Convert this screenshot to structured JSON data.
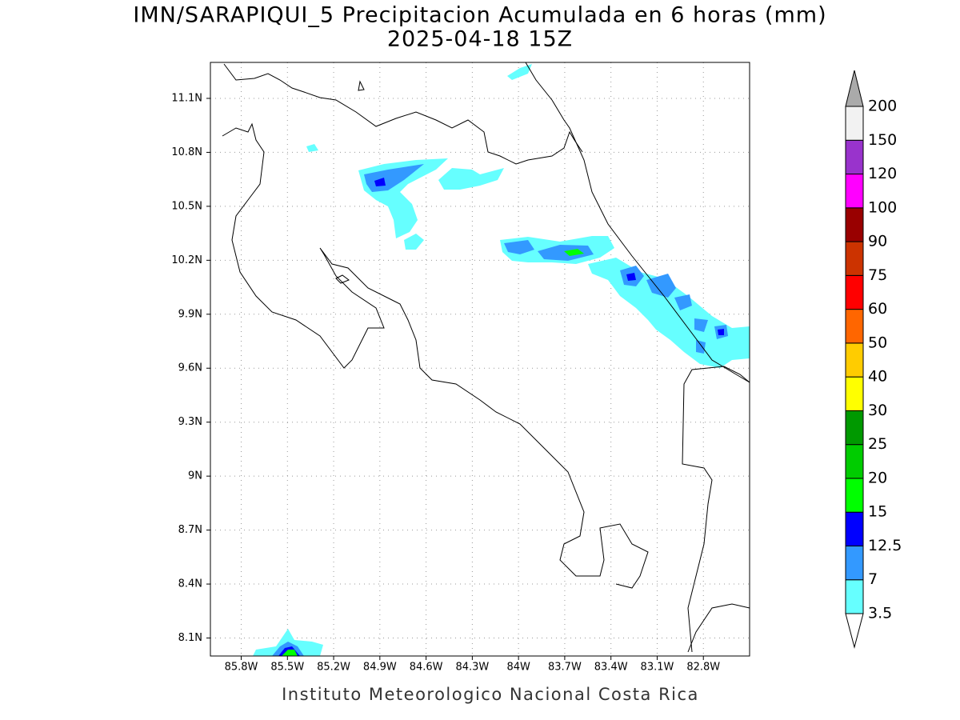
{
  "title": "IMN/SARAPIQUI_5 Precipitacion Acumulada en 6 horas (mm)",
  "subtitle": "2025-04-18 15Z",
  "map": {
    "lonlim": [
      -86.0,
      -82.5
    ],
    "latlim": [
      8.0,
      11.3
    ],
    "grid": true,
    "lon_ticks": [
      {
        "value": -85.8,
        "label": "85.8W"
      },
      {
        "value": -85.5,
        "label": "85.5W"
      },
      {
        "value": -85.2,
        "label": "85.2W"
      },
      {
        "value": -84.9,
        "label": "84.9W"
      },
      {
        "value": -84.6,
        "label": "84.6W"
      },
      {
        "value": -84.3,
        "label": "84.3W"
      },
      {
        "value": -84.0,
        "label": "84W"
      },
      {
        "value": -83.7,
        "label": "83.7W"
      },
      {
        "value": -83.4,
        "label": "83.4W"
      },
      {
        "value": -83.1,
        "label": "83.1W"
      },
      {
        "value": -82.8,
        "label": "82.8W"
      }
    ],
    "lat_ticks": [
      {
        "value": 11.1,
        "label": "11.1N"
      },
      {
        "value": 10.8,
        "label": "10.8N"
      },
      {
        "value": 10.5,
        "label": "10.5N"
      },
      {
        "value": 10.2,
        "label": "10.2N"
      },
      {
        "value": 9.9,
        "label": "9.9N"
      },
      {
        "value": 9.6,
        "label": "9.6N"
      },
      {
        "value": 9.3,
        "label": "9.3N"
      },
      {
        "value": 9.0,
        "label": "9N"
      },
      {
        "value": 8.7,
        "label": "8.7N"
      },
      {
        "value": 8.4,
        "label": "8.4N"
      },
      {
        "value": 8.1,
        "label": "8.1N"
      }
    ]
  },
  "colorbar": {
    "levels": [
      3.5,
      7,
      12.5,
      15,
      20,
      25,
      30,
      40,
      50,
      60,
      75,
      90,
      100,
      120,
      150,
      200
    ],
    "colors": [
      "#66ffff",
      "#3399ff",
      "#0000ff",
      "#00ff00",
      "#00cc00",
      "#009900",
      "#ffff00",
      "#ffcc00",
      "#ff6600",
      "#ff0000",
      "#cc3300",
      "#990000",
      "#ff00ff",
      "#9933cc",
      "#f2f2f2"
    ],
    "under_color": "#ffffff",
    "over_color": "#aaaaaa"
  },
  "footer": "Instituto Meteorologico Nacional Costa Rica"
}
